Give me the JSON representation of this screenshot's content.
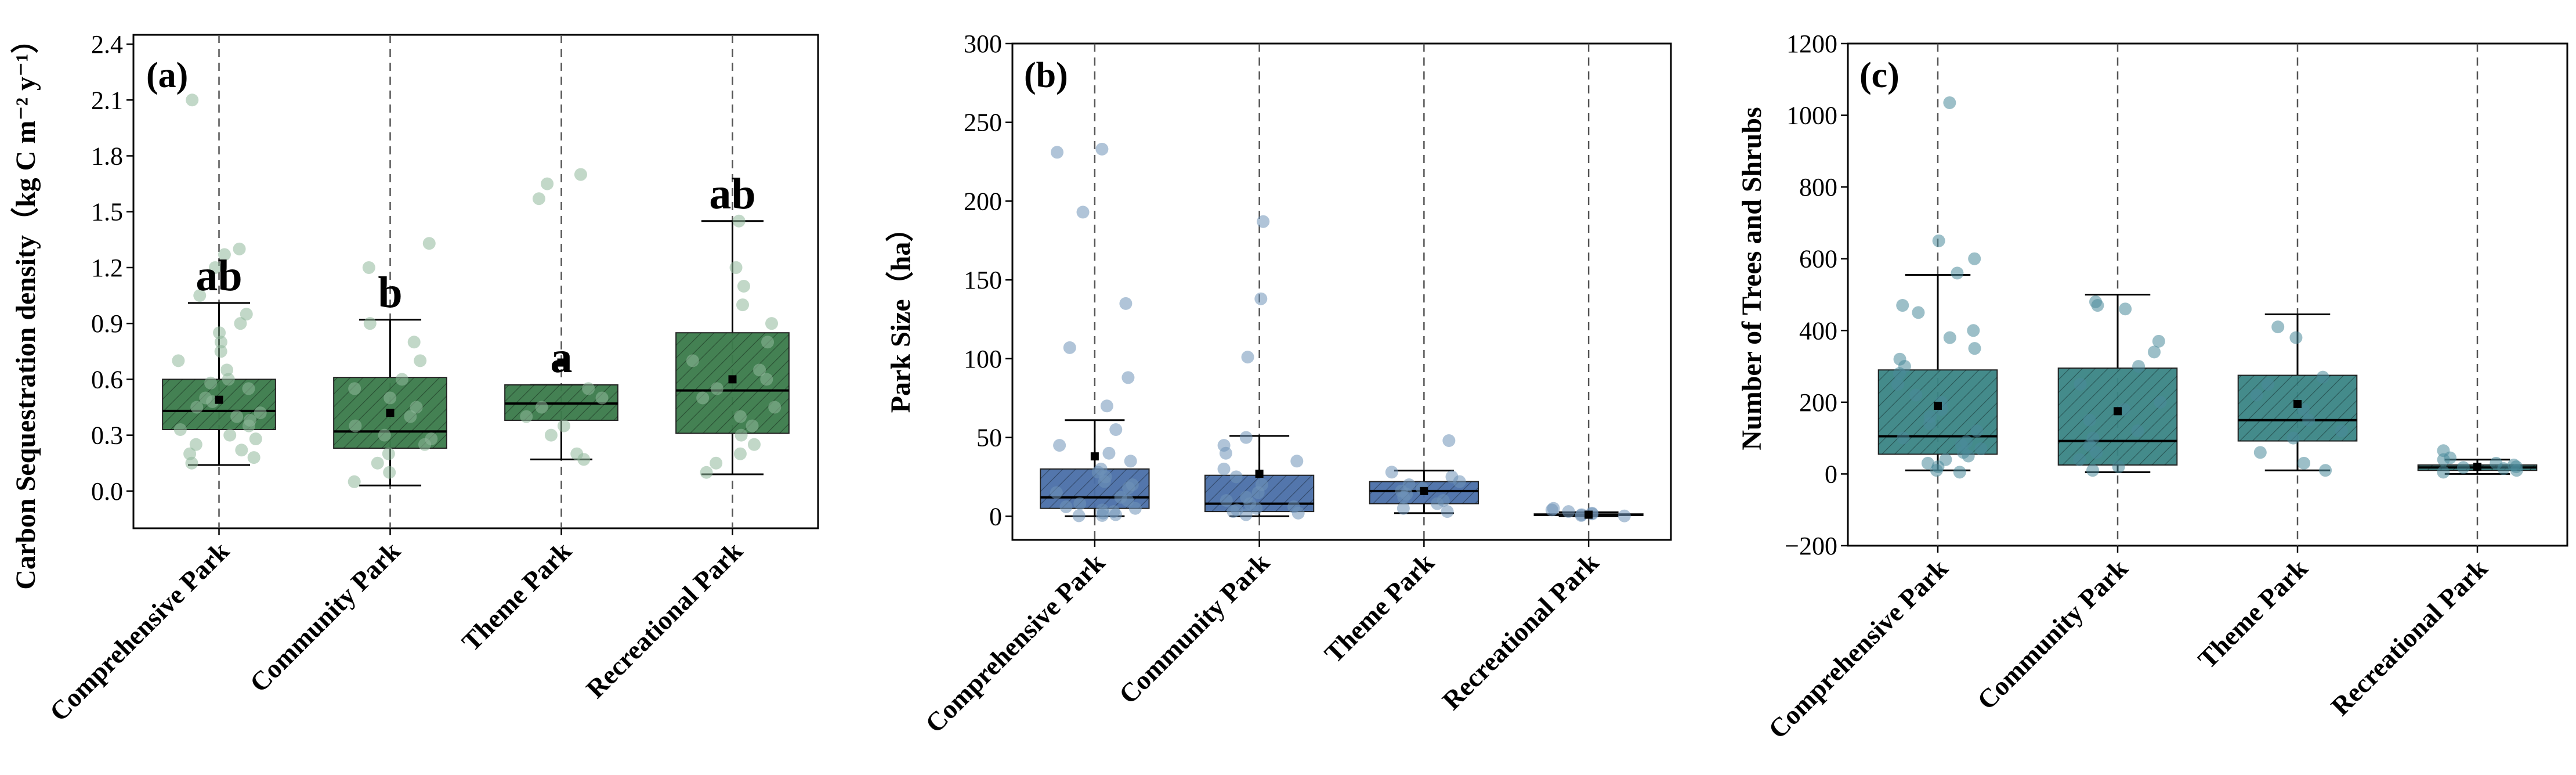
{
  "figure": {
    "categories": [
      "Comprehensive Park",
      "Community Park",
      "Theme Park",
      "Recreational Park"
    ]
  },
  "chart_data": [
    {
      "type": "box",
      "panel_label": "(a)",
      "ylabel": "Carbon Sequestration density（kg C m⁻² y⁻¹）",
      "ylim": [
        -0.2,
        2.45
      ],
      "yticks": [
        0.0,
        0.3,
        0.6,
        0.9,
        1.2,
        1.5,
        1.8,
        2.1,
        2.4
      ],
      "ytick_labels": [
        "0.0",
        "0.3",
        "0.6",
        "0.9",
        "1.2",
        "1.5",
        "1.8",
        "2.1",
        "2.4"
      ],
      "fill": "#3a7a4a",
      "point_color": "#8fb89a",
      "hatch": true,
      "boxes": [
        {
          "whisker_low": 0.14,
          "q1": 0.33,
          "median": 0.43,
          "q3": 0.6,
          "whisker_high": 1.01,
          "mean": 0.49,
          "significance": "ab",
          "points": [
            2.1,
            1.3,
            1.27,
            1.2,
            1.05,
            0.95,
            0.9,
            0.85,
            0.8,
            0.75,
            0.7,
            0.65,
            0.6,
            0.58,
            0.55,
            0.5,
            0.48,
            0.45,
            0.42,
            0.4,
            0.38,
            0.35,
            0.33,
            0.3,
            0.28,
            0.25,
            0.22,
            0.2,
            0.18,
            0.15
          ]
        },
        {
          "whisker_low": 0.03,
          "q1": 0.23,
          "median": 0.32,
          "q3": 0.61,
          "whisker_high": 0.92,
          "mean": 0.42,
          "significance": "b",
          "points": [
            1.33,
            1.2,
            0.9,
            0.8,
            0.7,
            0.6,
            0.55,
            0.5,
            0.45,
            0.4,
            0.35,
            0.3,
            0.28,
            0.25,
            0.2,
            0.15,
            0.1,
            0.05
          ]
        },
        {
          "whisker_low": 0.17,
          "q1": 0.38,
          "median": 0.47,
          "q3": 0.57,
          "whisker_high": 0.57,
          "mean": 0.69,
          "significance": "a",
          "points": [
            1.7,
            1.65,
            1.57,
            0.55,
            0.5,
            0.45,
            0.4,
            0.35,
            0.3,
            0.2,
            0.17
          ]
        },
        {
          "whisker_low": 0.09,
          "q1": 0.31,
          "median": 0.54,
          "q3": 0.85,
          "whisker_high": 1.45,
          "mean": 0.6,
          "significance": "ab",
          "points": [
            1.45,
            1.2,
            1.1,
            1.0,
            0.9,
            0.8,
            0.7,
            0.65,
            0.6,
            0.55,
            0.5,
            0.45,
            0.4,
            0.35,
            0.3,
            0.25,
            0.2,
            0.15,
            0.1
          ]
        }
      ]
    },
    {
      "type": "box",
      "panel_label": "(b)",
      "ylabel": "Park Size（ha）",
      "ylim": [
        -15,
        300
      ],
      "yticks": [
        0,
        50,
        100,
        150,
        200,
        250,
        300
      ],
      "ytick_labels": [
        "0",
        "50",
        "100",
        "150",
        "200",
        "250",
        "300"
      ],
      "fill": "#4a6fa8",
      "point_color": "#6f93b8",
      "hatch": true,
      "boxes": [
        {
          "whisker_low": 0,
          "q1": 5,
          "median": 12,
          "q3": 30,
          "whisker_high": 61,
          "mean": 38,
          "points": [
            233,
            231,
            193,
            135,
            107,
            88,
            70,
            55,
            45,
            40,
            35,
            30,
            28,
            25,
            22,
            20,
            18,
            15,
            12,
            10,
            8,
            6,
            5,
            4,
            3,
            2,
            1,
            0.5,
            0.3
          ]
        },
        {
          "whisker_low": 0,
          "q1": 3,
          "median": 8,
          "q3": 26,
          "whisker_high": 51,
          "mean": 27,
          "points": [
            187,
            138,
            101,
            50,
            45,
            40,
            35,
            30,
            25,
            20,
            15,
            12,
            10,
            8,
            6,
            5,
            4,
            3,
            2,
            1
          ]
        },
        {
          "whisker_low": 2,
          "q1": 8,
          "median": 16,
          "q3": 22,
          "whisker_high": 29,
          "mean": 16,
          "points": [
            48,
            28,
            25,
            22,
            20,
            18,
            16,
            14,
            12,
            10,
            8,
            5,
            3
          ]
        },
        {
          "whisker_low": 0,
          "q1": 0.5,
          "median": 1,
          "q3": 1.5,
          "whisker_high": 2.5,
          "mean": 1,
          "points": [
            5,
            4,
            3,
            2,
            1.5,
            1,
            0.5,
            0.2
          ]
        }
      ]
    },
    {
      "type": "box",
      "panel_label": "(c)",
      "ylabel": "Number of Trees and Shrubs",
      "ylim": [
        -200,
        1200
      ],
      "yticks": [
        -200,
        0,
        200,
        400,
        600,
        800,
        1000,
        1200
      ],
      "ytick_labels": [
        "−200",
        "0",
        "200",
        "400",
        "600",
        "800",
        "1000",
        "1200"
      ],
      "fill": "#3a8585",
      "point_color": "#4a8a9a",
      "hatch": true,
      "boxes": [
        {
          "whisker_low": 10,
          "q1": 55,
          "median": 105,
          "q3": 290,
          "whisker_high": 555,
          "mean": 190,
          "points": [
            1035,
            650,
            600,
            560,
            470,
            450,
            400,
            380,
            350,
            320,
            300,
            280,
            250,
            220,
            200,
            180,
            160,
            140,
            120,
            100,
            90,
            80,
            70,
            60,
            50,
            40,
            30,
            20,
            10,
            5
          ]
        },
        {
          "whisker_low": 5,
          "q1": 25,
          "median": 92,
          "q3": 295,
          "whisker_high": 500,
          "mean": 175,
          "points": [
            480,
            470,
            460,
            370,
            340,
            300,
            250,
            200,
            180,
            150,
            120,
            100,
            80,
            60,
            40,
            20,
            10
          ]
        },
        {
          "whisker_low": 10,
          "q1": 92,
          "median": 150,
          "q3": 275,
          "whisker_high": 445,
          "mean": 195,
          "points": [
            410,
            380,
            270,
            250,
            220,
            180,
            150,
            120,
            100,
            60,
            30,
            10
          ]
        },
        {
          "whisker_low": 0,
          "q1": 10,
          "median": 18,
          "q3": 25,
          "whisker_high": 40,
          "mean": 20,
          "points": [
            65,
            45,
            40,
            30,
            25,
            20,
            18,
            15,
            10,
            5
          ]
        }
      ]
    }
  ]
}
